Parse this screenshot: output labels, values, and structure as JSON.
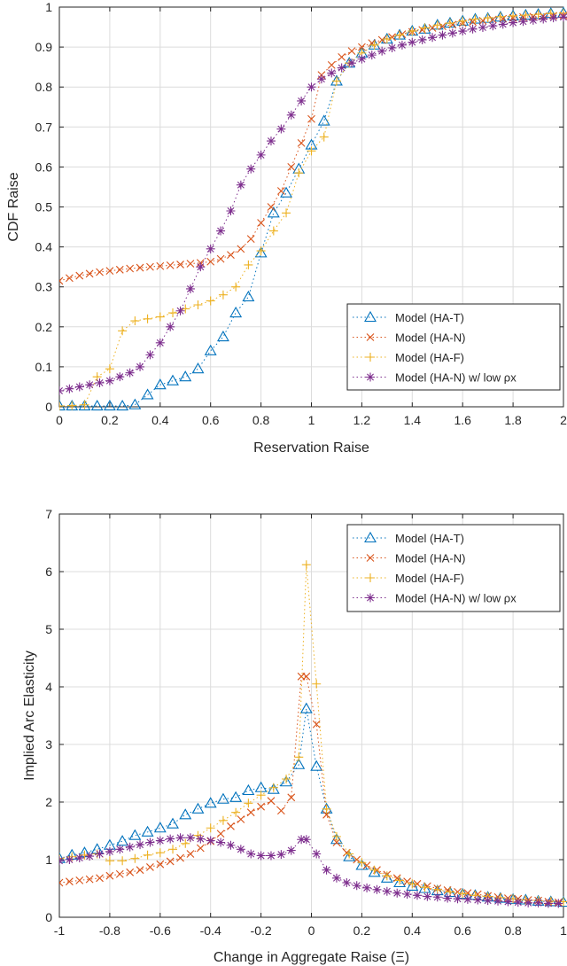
{
  "chart_data": [
    {
      "type": "line",
      "title": "",
      "xlabel": "Reservation Raise",
      "ylabel": "CDF Raise",
      "xlim": [
        0,
        2
      ],
      "ylim": [
        0,
        1
      ],
      "xticks": [
        "0",
        "0.2",
        "0.4",
        "0.6",
        "0.8",
        "1",
        "1.2",
        "1.4",
        "1.6",
        "1.8",
        "2"
      ],
      "yticks": [
        "0",
        "0.1",
        "0.2",
        "0.3",
        "0.4",
        "0.5",
        "0.6",
        "0.7",
        "0.8",
        "0.9",
        "1"
      ],
      "grid": true,
      "legend_position": "bottom-right",
      "series": [
        {
          "name": "Model (HA-T)",
          "color": "#0072BD",
          "marker": "triangle",
          "x": [
            0,
            0.05,
            0.1,
            0.15,
            0.2,
            0.25,
            0.3,
            0.35,
            0.4,
            0.45,
            0.5,
            0.55,
            0.6,
            0.65,
            0.7,
            0.75,
            0.8,
            0.85,
            0.9,
            0.95,
            1,
            1.05,
            1.1,
            1.15,
            1.2,
            1.25,
            1.3,
            1.35,
            1.4,
            1.45,
            1.5,
            1.55,
            1.6,
            1.65,
            1.7,
            1.75,
            1.8,
            1.85,
            1.9,
            1.95,
            2
          ],
          "y": [
            0.002,
            0.002,
            0.002,
            0.002,
            0.002,
            0.002,
            0.005,
            0.03,
            0.055,
            0.065,
            0.075,
            0.095,
            0.14,
            0.175,
            0.235,
            0.275,
            0.385,
            0.485,
            0.535,
            0.595,
            0.655,
            0.715,
            0.815,
            0.86,
            0.885,
            0.905,
            0.92,
            0.93,
            0.94,
            0.945,
            0.955,
            0.96,
            0.965,
            0.97,
            0.972,
            0.975,
            0.978,
            0.98,
            0.982,
            0.984,
            0.985
          ]
        },
        {
          "name": "Model (HA-N)",
          "color": "#D95319",
          "marker": "x",
          "x": [
            0,
            0.04,
            0.08,
            0.12,
            0.16,
            0.2,
            0.24,
            0.28,
            0.32,
            0.36,
            0.4,
            0.44,
            0.48,
            0.52,
            0.56,
            0.6,
            0.64,
            0.68,
            0.72,
            0.76,
            0.8,
            0.84,
            0.88,
            0.92,
            0.96,
            1,
            1.04,
            1.08,
            1.12,
            1.16,
            1.2,
            1.24,
            1.28,
            1.32,
            1.36,
            1.4,
            1.44,
            1.48,
            1.52,
            1.56,
            1.6,
            1.64,
            1.68,
            1.72,
            1.76,
            1.8,
            1.84,
            1.88,
            1.92,
            1.96,
            2
          ],
          "y": [
            0.315,
            0.322,
            0.328,
            0.333,
            0.337,
            0.34,
            0.343,
            0.346,
            0.348,
            0.35,
            0.352,
            0.354,
            0.356,
            0.358,
            0.36,
            0.363,
            0.37,
            0.38,
            0.395,
            0.42,
            0.46,
            0.5,
            0.54,
            0.6,
            0.66,
            0.72,
            0.83,
            0.855,
            0.875,
            0.89,
            0.9,
            0.91,
            0.918,
            0.925,
            0.932,
            0.938,
            0.943,
            0.948,
            0.952,
            0.956,
            0.96,
            0.963,
            0.966,
            0.969,
            0.971,
            0.973,
            0.975,
            0.976,
            0.977,
            0.978,
            0.979
          ]
        },
        {
          "name": "Model (HA-F)",
          "color": "#EDB120",
          "marker": "plus",
          "x": [
            0,
            0.05,
            0.1,
            0.15,
            0.2,
            0.25,
            0.3,
            0.35,
            0.4,
            0.45,
            0.5,
            0.55,
            0.6,
            0.65,
            0.7,
            0.75,
            0.8,
            0.85,
            0.9,
            0.95,
            1,
            1.05,
            1.1,
            1.15,
            1.2,
            1.25,
            1.3,
            1.35,
            1.4,
            1.45,
            1.5,
            1.55,
            1.6,
            1.65,
            1.7,
            1.75,
            1.8,
            1.85,
            1.9,
            1.95,
            2
          ],
          "y": [
            0.002,
            0.003,
            0.005,
            0.075,
            0.095,
            0.19,
            0.215,
            0.22,
            0.225,
            0.235,
            0.245,
            0.255,
            0.265,
            0.28,
            0.3,
            0.355,
            0.39,
            0.44,
            0.485,
            0.585,
            0.64,
            0.675,
            0.815,
            0.86,
            0.885,
            0.905,
            0.92,
            0.93,
            0.94,
            0.948,
            0.955,
            0.96,
            0.965,
            0.97,
            0.973,
            0.976,
            0.978,
            0.98,
            0.982,
            0.984,
            0.985
          ]
        },
        {
          "name": "Model (HA-N) w/ low ρx",
          "color": "#7E2F8E",
          "marker": "asterisk",
          "x": [
            0,
            0.04,
            0.08,
            0.12,
            0.16,
            0.2,
            0.24,
            0.28,
            0.32,
            0.36,
            0.4,
            0.44,
            0.48,
            0.52,
            0.56,
            0.6,
            0.64,
            0.68,
            0.72,
            0.76,
            0.8,
            0.84,
            0.88,
            0.92,
            0.96,
            1,
            1.04,
            1.08,
            1.12,
            1.16,
            1.2,
            1.24,
            1.28,
            1.32,
            1.36,
            1.4,
            1.44,
            1.48,
            1.52,
            1.56,
            1.6,
            1.64,
            1.68,
            1.72,
            1.76,
            1.8,
            1.84,
            1.88,
            1.92,
            1.96,
            2
          ],
          "y": [
            0.04,
            0.045,
            0.05,
            0.055,
            0.06,
            0.065,
            0.075,
            0.085,
            0.1,
            0.13,
            0.16,
            0.2,
            0.24,
            0.295,
            0.35,
            0.395,
            0.44,
            0.49,
            0.555,
            0.595,
            0.63,
            0.665,
            0.695,
            0.73,
            0.765,
            0.8,
            0.82,
            0.835,
            0.848,
            0.86,
            0.87,
            0.88,
            0.89,
            0.898,
            0.905,
            0.912,
            0.918,
            0.924,
            0.93,
            0.935,
            0.94,
            0.945,
            0.949,
            0.953,
            0.957,
            0.961,
            0.964,
            0.967,
            0.97,
            0.973,
            0.975
          ]
        }
      ]
    },
    {
      "type": "line",
      "title": "",
      "xlabel": "Change in Aggregate Raise (Ξ)",
      "ylabel": "Implied Arc Elasticity",
      "xlim": [
        -1,
        1
      ],
      "ylim": [
        0,
        7
      ],
      "xticks": [
        "-1",
        "-0.8",
        "-0.6",
        "-0.4",
        "-0.2",
        "0",
        "0.2",
        "0.4",
        "0.6",
        "0.8",
        "1"
      ],
      "yticks": [
        "0",
        "1",
        "2",
        "3",
        "4",
        "5",
        "6",
        "7"
      ],
      "grid": true,
      "legend_position": "top-right",
      "series": [
        {
          "name": "Model (HA-T)",
          "color": "#0072BD",
          "marker": "triangle",
          "x": [
            -1,
            -0.95,
            -0.9,
            -0.85,
            -0.8,
            -0.75,
            -0.7,
            -0.65,
            -0.6,
            -0.55,
            -0.5,
            -0.45,
            -0.4,
            -0.35,
            -0.3,
            -0.25,
            -0.2,
            -0.15,
            -0.1,
            -0.05,
            -0.02,
            0.02,
            0.06,
            0.1,
            0.15,
            0.2,
            0.25,
            0.3,
            0.35,
            0.4,
            0.45,
            0.5,
            0.55,
            0.6,
            0.65,
            0.7,
            0.75,
            0.8,
            0.85,
            0.9,
            0.95,
            1
          ],
          "y": [
            1.02,
            1.08,
            1.12,
            1.18,
            1.25,
            1.32,
            1.42,
            1.48,
            1.55,
            1.62,
            1.78,
            1.88,
            1.98,
            2.05,
            2.08,
            2.2,
            2.25,
            2.22,
            2.35,
            2.65,
            3.62,
            2.62,
            1.88,
            1.35,
            1.05,
            0.9,
            0.78,
            0.68,
            0.6,
            0.54,
            0.5,
            0.46,
            0.43,
            0.4,
            0.38,
            0.35,
            0.33,
            0.31,
            0.3,
            0.28,
            0.27,
            0.26
          ]
        },
        {
          "name": "Model (HA-N)",
          "color": "#D95319",
          "marker": "x",
          "x": [
            -1,
            -0.96,
            -0.92,
            -0.88,
            -0.84,
            -0.8,
            -0.76,
            -0.72,
            -0.68,
            -0.64,
            -0.6,
            -0.56,
            -0.52,
            -0.48,
            -0.44,
            -0.4,
            -0.36,
            -0.32,
            -0.28,
            -0.24,
            -0.2,
            -0.16,
            -0.12,
            -0.08,
            -0.04,
            -0.02,
            0.02,
            0.06,
            0.1,
            0.14,
            0.18,
            0.22,
            0.26,
            0.3,
            0.34,
            0.38,
            0.42,
            0.46,
            0.5,
            0.54,
            0.58,
            0.62,
            0.66,
            0.7,
            0.74,
            0.78,
            0.82,
            0.86,
            0.9,
            0.94,
            0.98
          ],
          "y": [
            0.6,
            0.62,
            0.64,
            0.66,
            0.68,
            0.72,
            0.75,
            0.78,
            0.82,
            0.87,
            0.92,
            0.97,
            1.03,
            1.1,
            1.2,
            1.32,
            1.45,
            1.58,
            1.7,
            1.82,
            1.92,
            2.02,
            1.85,
            2.08,
            4.18,
            4.18,
            3.35,
            1.78,
            1.3,
            1.12,
            1.0,
            0.9,
            0.82,
            0.74,
            0.68,
            0.62,
            0.58,
            0.54,
            0.5,
            0.47,
            0.44,
            0.42,
            0.4,
            0.37,
            0.35,
            0.33,
            0.32,
            0.3,
            0.29,
            0.27,
            0.26
          ]
        },
        {
          "name": "Model (HA-F)",
          "color": "#EDB120",
          "marker": "plus",
          "x": [
            -1,
            -0.95,
            -0.9,
            -0.85,
            -0.8,
            -0.75,
            -0.7,
            -0.65,
            -0.6,
            -0.55,
            -0.5,
            -0.45,
            -0.4,
            -0.35,
            -0.3,
            -0.25,
            -0.2,
            -0.15,
            -0.1,
            -0.05,
            -0.02,
            0.02,
            0.06,
            0.1,
            0.15,
            0.2,
            0.25,
            0.3,
            0.35,
            0.4,
            0.45,
            0.5,
            0.55,
            0.6,
            0.65,
            0.7,
            0.75,
            0.8,
            0.85,
            0.9,
            0.95,
            1
          ],
          "y": [
            1.02,
            1.05,
            1.08,
            1.1,
            0.98,
            0.98,
            1.02,
            1.08,
            1.12,
            1.18,
            1.28,
            1.42,
            1.55,
            1.68,
            1.82,
            1.98,
            2.12,
            2.25,
            2.4,
            2.78,
            6.12,
            4.05,
            1.88,
            1.4,
            1.1,
            0.95,
            0.82,
            0.72,
            0.64,
            0.58,
            0.52,
            0.48,
            0.44,
            0.41,
            0.38,
            0.36,
            0.34,
            0.32,
            0.3,
            0.29,
            0.28,
            0.27
          ]
        },
        {
          "name": "Model (HA-N) w/ low ρx",
          "color": "#7E2F8E",
          "marker": "asterisk",
          "x": [
            -1,
            -0.96,
            -0.92,
            -0.88,
            -0.84,
            -0.8,
            -0.76,
            -0.72,
            -0.68,
            -0.64,
            -0.6,
            -0.56,
            -0.52,
            -0.48,
            -0.44,
            -0.4,
            -0.36,
            -0.32,
            -0.28,
            -0.24,
            -0.2,
            -0.16,
            -0.12,
            -0.08,
            -0.04,
            -0.02,
            0.02,
            0.06,
            0.1,
            0.14,
            0.18,
            0.22,
            0.26,
            0.3,
            0.34,
            0.38,
            0.42,
            0.46,
            0.5,
            0.54,
            0.58,
            0.62,
            0.66,
            0.7,
            0.74,
            0.78,
            0.82,
            0.86,
            0.9,
            0.94,
            0.98
          ],
          "y": [
            0.98,
            1.0,
            1.03,
            1.06,
            1.1,
            1.14,
            1.18,
            1.22,
            1.26,
            1.3,
            1.33,
            1.36,
            1.38,
            1.38,
            1.36,
            1.33,
            1.3,
            1.25,
            1.18,
            1.1,
            1.07,
            1.07,
            1.09,
            1.16,
            1.35,
            1.35,
            1.1,
            0.82,
            0.68,
            0.6,
            0.55,
            0.51,
            0.48,
            0.45,
            0.42,
            0.4,
            0.38,
            0.36,
            0.35,
            0.33,
            0.32,
            0.31,
            0.3,
            0.29,
            0.28,
            0.27,
            0.26,
            0.25,
            0.25,
            0.24,
            0.24
          ]
        }
      ]
    }
  ]
}
